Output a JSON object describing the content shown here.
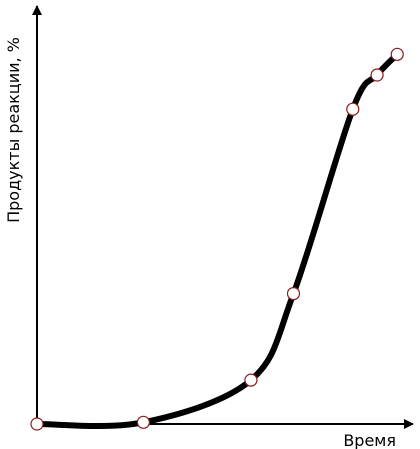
{
  "chart_data": {
    "type": "line",
    "title": "",
    "xlabel": "Время",
    "ylabel": "Продукты реакции, %",
    "xlim": [
      0,
      100
    ],
    "ylim": [
      0,
      100
    ],
    "grid": false,
    "legend": "none",
    "x": [
      0,
      28,
      56.3,
      67.5,
      83.1,
      89.5,
      94.8
    ],
    "series": [
      {
        "values": [
          0,
          0.4,
          10.4,
          30.9,
          74.6,
          82.7,
          87.6
        ]
      }
    ],
    "colors": {
      "line": "#000000",
      "marker_fill": "#ffffff",
      "marker_stroke": "#8b1a1a",
      "axes": "#000000"
    }
  }
}
